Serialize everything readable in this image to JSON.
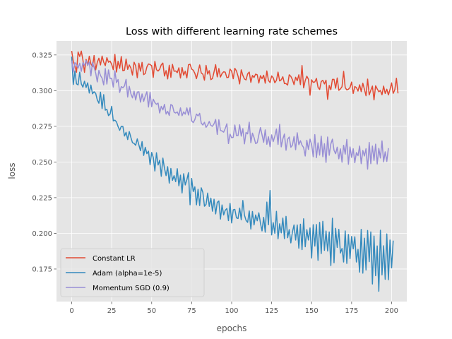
{
  "chart_data": {
    "type": "line",
    "title": "Loss with different learning rate schemes",
    "xlabel": "epochs",
    "ylabel": "loss",
    "xlim": [
      -9.5,
      209.5
    ],
    "ylim": [
      0.1522,
      0.3348
    ],
    "xticks": [
      0,
      25,
      50,
      75,
      100,
      125,
      150,
      175,
      200
    ],
    "yticks": [
      0.175,
      0.2,
      0.225,
      0.25,
      0.275,
      0.3,
      0.325
    ],
    "grid": true,
    "legend_position": "lower-left",
    "series": [
      {
        "name": "Constant LR",
        "color": "#E24A33",
        "values": [
          0.3278,
          0.3204,
          0.3173,
          0.3129,
          0.3271,
          0.3239,
          0.3277,
          0.3216,
          0.3128,
          0.3219,
          0.3176,
          0.3241,
          0.3188,
          0.3168,
          0.3246,
          0.3145,
          0.3199,
          0.3227,
          0.318,
          0.3242,
          0.32,
          0.3175,
          0.3231,
          0.3199,
          0.3207,
          0.3184,
          0.3147,
          0.3254,
          0.313,
          0.3206,
          0.3156,
          0.3239,
          0.3139,
          0.3143,
          0.3222,
          0.3149,
          0.318,
          0.3158,
          0.3109,
          0.3199,
          0.3174,
          0.309,
          0.3192,
          0.3136,
          0.3198,
          0.3112,
          0.312,
          0.3166,
          0.3187,
          0.3183,
          0.3175,
          0.3093,
          0.3205,
          0.3147,
          0.3137,
          0.315,
          0.3181,
          0.3193,
          0.3102,
          0.314,
          0.3082,
          0.3178,
          0.3093,
          0.3184,
          0.3136,
          0.3138,
          0.3126,
          0.316,
          0.3088,
          0.3162,
          0.3109,
          0.3136,
          0.3089,
          0.3181,
          0.3185,
          0.3151,
          0.3143,
          0.3121,
          0.3084,
          0.313,
          0.318,
          0.3124,
          0.3115,
          0.3073,
          0.3177,
          0.3116,
          0.314,
          0.3077,
          0.3085,
          0.3132,
          0.3182,
          0.3096,
          0.3155,
          0.3095,
          0.312,
          0.3132,
          0.3129,
          0.3091,
          0.3093,
          0.3151,
          0.3136,
          0.3083,
          0.3156,
          0.3138,
          0.3101,
          0.3047,
          0.3146,
          0.3107,
          0.3082,
          0.3075,
          0.3118,
          0.313,
          0.3058,
          0.3106,
          0.3092,
          0.3116,
          0.3111,
          0.3053,
          0.3105,
          0.3084,
          0.3108,
          0.3052,
          0.3138,
          0.3072,
          0.3057,
          0.3103,
          0.309,
          0.3055,
          0.3072,
          0.313,
          0.3068,
          0.3076,
          0.3097,
          0.3049,
          0.3049,
          0.3039,
          0.3111,
          0.31,
          0.3077,
          0.3042,
          0.3094,
          0.3069,
          0.3111,
          0.3042,
          0.3176,
          0.3019,
          0.307,
          0.3101,
          0.308,
          0.2968,
          0.3076,
          0.3058,
          0.3061,
          0.3086,
          0.3023,
          0.3008,
          0.3064,
          0.3072,
          0.3047,
          0.3073,
          0.2939,
          0.3036,
          0.3006,
          0.3079,
          0.3079,
          0.3017,
          0.3089,
          0.3002,
          0.3012,
          0.3028,
          0.3135,
          0.3021,
          0.3005,
          0.301,
          0.3022,
          0.306,
          0.298,
          0.3029,
          0.3021,
          0.2997,
          0.3041,
          0.2993,
          0.3052,
          0.301,
          0.2964,
          0.3081,
          0.297,
          0.3002,
          0.3032,
          0.2935,
          0.3034,
          0.3012,
          0.2992,
          0.3001,
          0.2971,
          0.3032,
          0.298,
          0.301,
          0.297,
          0.3008,
          0.3054,
          0.2981,
          0.3006,
          0.3087,
          0.2981
        ]
      },
      {
        "name": "Adam (alpha=1e-5)",
        "color": "#348ABD",
        "values": [
          0.3239,
          0.3043,
          0.3138,
          0.3048,
          0.304,
          0.3129,
          0.3047,
          0.3024,
          0.3066,
          0.3022,
          0.3055,
          0.2983,
          0.3039,
          0.2978,
          0.2992,
          0.2981,
          0.2935,
          0.2912,
          0.2989,
          0.2874,
          0.2972,
          0.2863,
          0.2869,
          0.2825,
          0.2836,
          0.289,
          0.2788,
          0.2793,
          0.2781,
          0.2748,
          0.2722,
          0.275,
          0.2749,
          0.2682,
          0.2708,
          0.2657,
          0.2713,
          0.2672,
          0.2635,
          0.263,
          0.2617,
          0.2662,
          0.2619,
          0.2579,
          0.2643,
          0.2546,
          0.2603,
          0.2558,
          0.2576,
          0.2481,
          0.2567,
          0.2532,
          0.2437,
          0.2565,
          0.2479,
          0.2512,
          0.24,
          0.2527,
          0.2456,
          0.2404,
          0.2467,
          0.2352,
          0.2455,
          0.2371,
          0.2404,
          0.2362,
          0.2453,
          0.2333,
          0.2408,
          0.2283,
          0.2418,
          0.2339,
          0.2376,
          0.2425,
          0.22,
          0.2384,
          0.2293,
          0.2326,
          0.22,
          0.2309,
          0.2195,
          0.2319,
          0.2287,
          0.219,
          0.2203,
          0.2282,
          0.2189,
          0.2247,
          0.2155,
          0.2239,
          0.2136,
          0.2217,
          0.2227,
          0.21,
          0.2199,
          0.2129,
          0.2162,
          0.2174,
          0.2089,
          0.221,
          0.2073,
          0.2165,
          0.2168,
          0.2109,
          0.2104,
          0.2177,
          0.2095,
          0.223,
          0.2128,
          0.2091,
          0.2077,
          0.2157,
          0.203,
          0.2153,
          0.2059,
          0.2129,
          0.2088,
          0.2144,
          0.2072,
          0.2017,
          0.2112,
          0.2008,
          0.2219,
          0.206,
          0.23,
          0.1989,
          0.2075,
          0.2,
          0.2154,
          0.1962,
          0.2067,
          0.2003,
          0.2107,
          0.1963,
          0.2119,
          0.1969,
          0.2026,
          0.1933,
          0.201,
          0.2059,
          0.1953,
          0.2059,
          0.1896,
          0.2064,
          0.1886,
          0.2102,
          0.1906,
          0.2026,
          0.1953,
          0.2038,
          0.1827,
          0.2061,
          0.1911,
          0.2062,
          0.1811,
          0.2077,
          0.1858,
          0.2084,
          0.1881,
          0.2016,
          0.1876,
          0.201,
          0.1774,
          0.2106,
          0.1794,
          0.2035,
          0.1901,
          0.2028,
          0.1862,
          0.1894,
          0.1799,
          0.2017,
          0.1789,
          0.1992,
          0.1823,
          0.1978,
          0.1891,
          0.1976,
          0.1799,
          0.1888,
          0.1728,
          0.2028,
          0.1721,
          0.1966,
          0.1743,
          0.202,
          0.1801,
          0.201,
          0.1645,
          0.1981,
          0.1703,
          0.1912,
          0.1594,
          0.2022,
          0.1709,
          0.1913,
          0.1678,
          0.1996,
          0.1675,
          0.1953,
          0.1758,
          0.1949
        ]
      },
      {
        "name": "Momentum SGD (0.9)",
        "color": "#988ED5",
        "values": [
          0.321,
          0.313,
          0.3197,
          0.3182,
          0.3158,
          0.3192,
          0.3135,
          0.3196,
          0.3176,
          0.3211,
          0.3177,
          0.32,
          0.3103,
          0.3198,
          0.3163,
          0.3124,
          0.3061,
          0.3142,
          0.3106,
          0.3087,
          0.304,
          0.3155,
          0.3046,
          0.3145,
          0.3085,
          0.3086,
          0.3025,
          0.3139,
          0.3056,
          0.3078,
          0.2987,
          0.3028,
          0.302,
          0.3033,
          0.3079,
          0.2955,
          0.303,
          0.2978,
          0.2949,
          0.2996,
          0.2934,
          0.299,
          0.2992,
          0.2919,
          0.2977,
          0.2925,
          0.2962,
          0.2992,
          0.2885,
          0.2988,
          0.2887,
          0.294,
          0.2916,
          0.2904,
          0.2913,
          0.2843,
          0.289,
          0.2865,
          0.2904,
          0.2836,
          0.2855,
          0.2826,
          0.2903,
          0.2895,
          0.2849,
          0.2843,
          0.2851,
          0.2826,
          0.2879,
          0.2824,
          0.2851,
          0.2835,
          0.2879,
          0.2829,
          0.288,
          0.2788,
          0.2776,
          0.2797,
          0.2836,
          0.2823,
          0.2841,
          0.2772,
          0.2759,
          0.2778,
          0.2743,
          0.2759,
          0.2784,
          0.2756,
          0.275,
          0.2768,
          0.2798,
          0.2693,
          0.2796,
          0.2721,
          0.2717,
          0.2709,
          0.2735,
          0.2768,
          0.2629,
          0.2695,
          0.267,
          0.2673,
          0.2759,
          0.2685,
          0.2685,
          0.2761,
          0.2681,
          0.2734,
          0.2627,
          0.2707,
          0.2697,
          0.2779,
          0.2635,
          0.2702,
          0.2671,
          0.2629,
          0.2635,
          0.269,
          0.2741,
          0.269,
          0.2638,
          0.2725,
          0.2624,
          0.2677,
          0.2607,
          0.269,
          0.2643,
          0.2681,
          0.2731,
          0.2623,
          0.2764,
          0.2606,
          0.2661,
          0.2696,
          0.2582,
          0.2659,
          0.2675,
          0.2603,
          0.2618,
          0.2678,
          0.2586,
          0.2705,
          0.2621,
          0.2649,
          0.2618,
          0.2601,
          0.2542,
          0.2652,
          0.2588,
          0.266,
          0.2622,
          0.2537,
          0.2692,
          0.253,
          0.2634,
          0.2548,
          0.2681,
          0.2537,
          0.2628,
          0.2497,
          0.2675,
          0.2547,
          0.2626,
          0.266,
          0.2582,
          0.2558,
          0.2604,
          0.2522,
          0.2592,
          0.2499,
          0.2617,
          0.2555,
          0.2658,
          0.2484,
          0.2605,
          0.2532,
          0.2593,
          0.2495,
          0.2566,
          0.2544,
          0.2612,
          0.2488,
          0.2581,
          0.2542,
          0.2593,
          0.245,
          0.2637,
          0.2488,
          0.2612,
          0.2511,
          0.2625,
          0.2486,
          0.2596,
          0.2528,
          0.2648,
          0.2502,
          0.2571,
          0.2504,
          0.2597
        ]
      }
    ]
  }
}
